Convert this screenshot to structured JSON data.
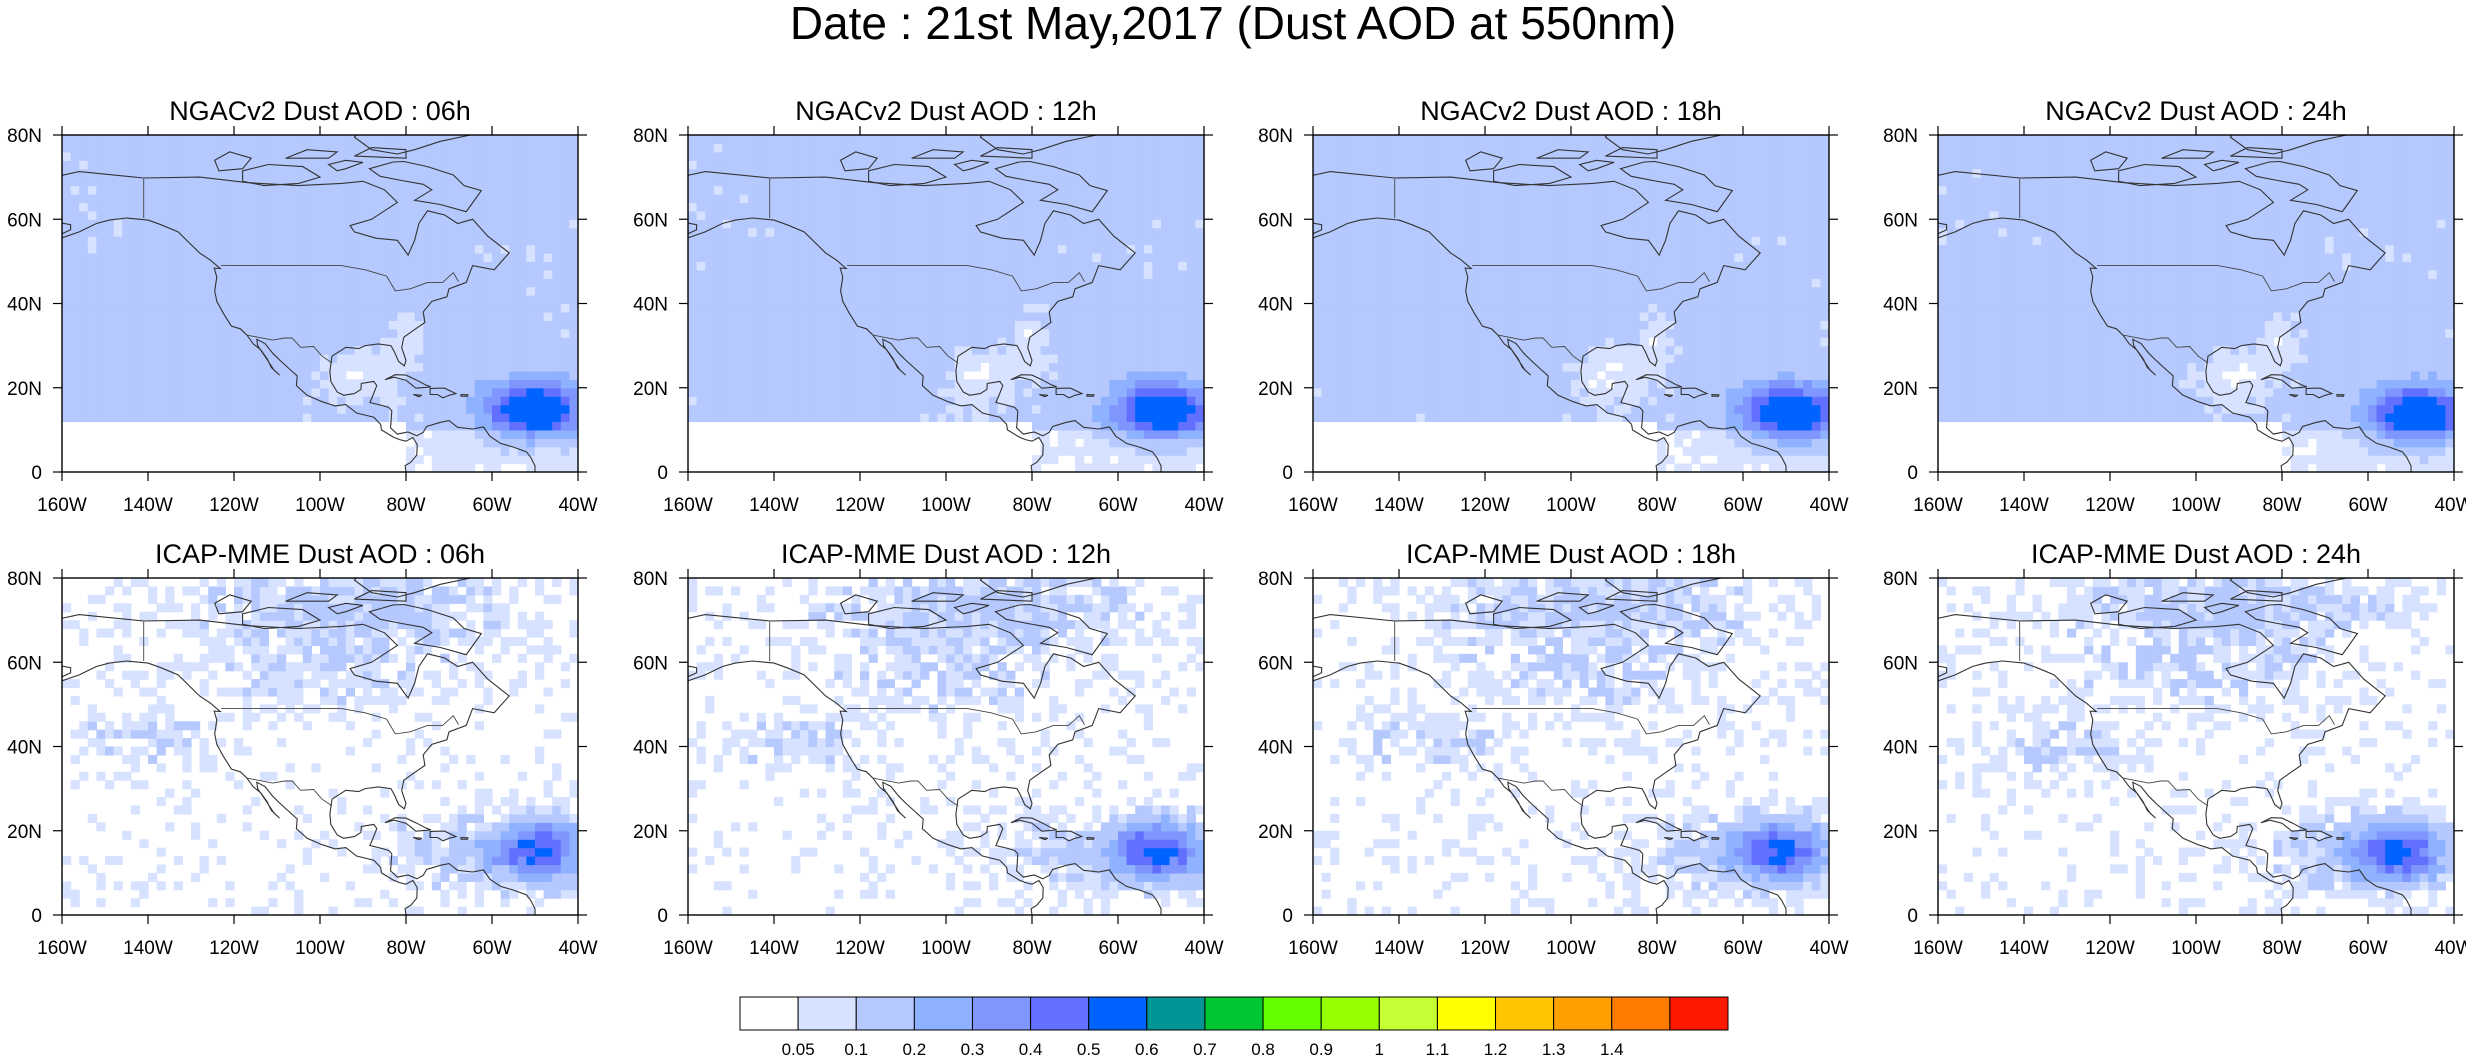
{
  "title": "Date : 21st May,2017 (Dust AOD at 550nm)",
  "panels": [
    {
      "title": "NGACv2 Dust AOD : 06h",
      "model": "ngac",
      "hour": 6
    },
    {
      "title": "NGACv2 Dust AOD : 12h",
      "model": "ngac",
      "hour": 12
    },
    {
      "title": "NGACv2 Dust AOD : 18h",
      "model": "ngac",
      "hour": 18
    },
    {
      "title": "NGACv2 Dust AOD : 24h",
      "model": "ngac",
      "hour": 24
    },
    {
      "title": "ICAP-MME Dust AOD : 06h",
      "model": "icap",
      "hour": 6
    },
    {
      "title": "ICAP-MME Dust AOD : 12h",
      "model": "icap",
      "hour": 12
    },
    {
      "title": "ICAP-MME Dust AOD : 18h",
      "model": "icap",
      "hour": 18
    },
    {
      "title": "ICAP-MME Dust AOD : 24h",
      "model": "icap",
      "hour": 24
    }
  ],
  "map": {
    "lon_range": [
      -160,
      -40
    ],
    "lat_range": [
      0,
      80
    ],
    "lon_ticks": [
      "160W",
      "140W",
      "120W",
      "100W",
      "80W",
      "60W",
      "40W"
    ],
    "lat_ticks": [
      "0",
      "20N",
      "40N",
      "60N",
      "80N"
    ]
  },
  "colorbar": {
    "labels": [
      "0.05",
      "0.1",
      "0.2",
      "0.3",
      "0.4",
      "0.5",
      "0.6",
      "0.7",
      "0.8",
      "0.9",
      "1",
      "1.1",
      "1.2",
      "1.3",
      "1.4"
    ],
    "colors": [
      "#ffffff",
      "#d6e2ff",
      "#b5c9ff",
      "#8eb2ff",
      "#7f96ff",
      "#6370ff",
      "#0063ff",
      "#009696",
      "#00c633",
      "#63ff00",
      "#96ff00",
      "#c6ff33",
      "#ffff00",
      "#ffc600",
      "#ffa000",
      "#ff7c00",
      "#ff1900"
    ]
  }
}
